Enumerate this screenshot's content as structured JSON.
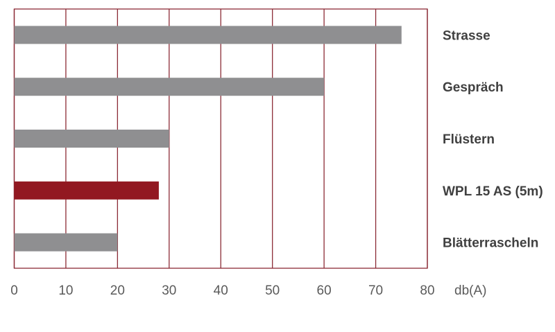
{
  "chart_data": {
    "type": "bar",
    "orientation": "horizontal",
    "categories": [
      "Strasse",
      "Gespräch",
      "Flüstern",
      "WPL 15 AS (5m)",
      "Blätterrascheln"
    ],
    "values": [
      75,
      60,
      30,
      28,
      20
    ],
    "highlight_category": "WPL 15 AS (5m)",
    "xlabel": "db(A)",
    "ylabel": "",
    "title": "",
    "xlim": [
      0,
      80
    ],
    "xticks": [
      0,
      10,
      20,
      30,
      40,
      50,
      60,
      70,
      80
    ],
    "grid": "vertical",
    "category_labels_position": "right",
    "colors": {
      "bar": "#8f8f91",
      "highlight": "#921821",
      "grid": "#8b2a35",
      "label": "#404040",
      "highlight_label": "#921821"
    }
  }
}
